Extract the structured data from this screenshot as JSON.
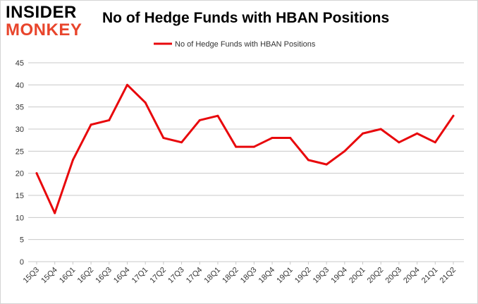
{
  "logo": {
    "line1": "INSIDER",
    "line2": "MONKEY"
  },
  "chart_data": {
    "type": "line",
    "title": "No of Hedge Funds with HBAN Positions",
    "xlabel": "",
    "ylabel": "",
    "categories": [
      "15Q3",
      "15Q4",
      "16Q1",
      "16Q2",
      "16Q3",
      "16Q4",
      "17Q1",
      "17Q2",
      "17Q3",
      "17Q4",
      "18Q1",
      "18Q2",
      "18Q3",
      "18Q4",
      "19Q1",
      "19Q2",
      "19Q3",
      "19Q4",
      "20Q1",
      "20Q2",
      "20Q3",
      "20Q4",
      "21Q1",
      "21Q2"
    ],
    "series": [
      {
        "name": "No of Hedge Funds with HBAN Positions",
        "color": "#e8080c",
        "values": [
          20,
          11,
          23,
          31,
          32,
          40,
          36,
          28,
          27,
          32,
          33,
          26,
          26,
          28,
          28,
          23,
          22,
          25,
          29,
          30,
          27,
          29,
          27,
          33
        ]
      }
    ],
    "ylim": [
      0,
      45
    ],
    "yticks": [
      0,
      5,
      10,
      15,
      20,
      25,
      30,
      35,
      40,
      45
    ],
    "grid": true,
    "legend": "top-center"
  }
}
